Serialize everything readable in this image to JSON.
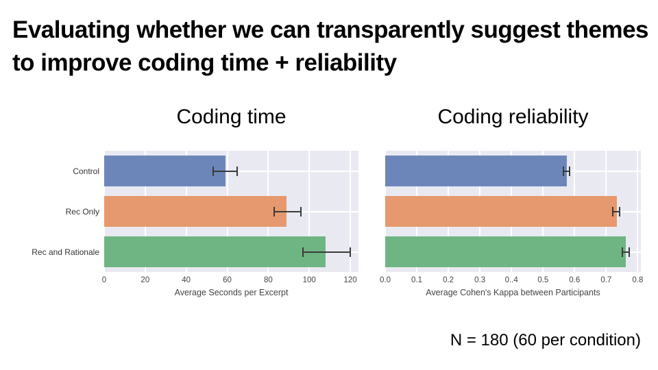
{
  "slide": {
    "title": "Evaluating whether we can transparently suggest themes to improve coding time + reliability",
    "footnote": "N = 180 (60 per condition)"
  },
  "style": {
    "palette": [
      "#6c86ba",
      "#e6996e",
      "#6fb583"
    ],
    "plot_bg": "#e9eaf1",
    "grid_color": "#ffffff",
    "error_color": "#3a3a3a"
  },
  "chart_data": [
    {
      "type": "bar",
      "orientation": "horizontal",
      "title": "Coding time",
      "xlabel": "Average Seconds per Excerpt",
      "ylabel": "",
      "categories": [
        "Control",
        "Rec Only",
        "Rec and Rationale"
      ],
      "values": [
        59,
        89,
        108
      ],
      "error_low": [
        53,
        83,
        97
      ],
      "error_high": [
        65,
        96,
        120
      ],
      "xlim": [
        0,
        124
      ],
      "ticks": [
        0,
        20,
        40,
        60,
        80,
        100,
        120
      ],
      "tick_labels": [
        "0",
        "20",
        "40",
        "60",
        "80",
        "100",
        "120"
      ],
      "show_category_labels": true,
      "grid": true,
      "legend": "none"
    },
    {
      "type": "bar",
      "orientation": "horizontal",
      "title": "Coding reliability",
      "xlabel": "Average Cohen's Kappa between Participants",
      "ylabel": "",
      "categories": [
        "Control",
        "Rec Only",
        "Rec and Rationale"
      ],
      "values": [
        0.575,
        0.735,
        0.762
      ],
      "error_low": [
        0.565,
        0.722,
        0.752
      ],
      "error_high": [
        0.585,
        0.742,
        0.772
      ],
      "xlim": [
        0,
        0.81
      ],
      "ticks": [
        0,
        0.1,
        0.2,
        0.3,
        0.4,
        0.5,
        0.6,
        0.7,
        0.8
      ],
      "tick_labels": [
        "0.0",
        "0.1",
        "0.2",
        "0.3",
        "0..4",
        "0.5",
        "0.6",
        "0.7",
        "0.8"
      ],
      "show_category_labels": false,
      "grid": true,
      "legend": "none"
    }
  ]
}
